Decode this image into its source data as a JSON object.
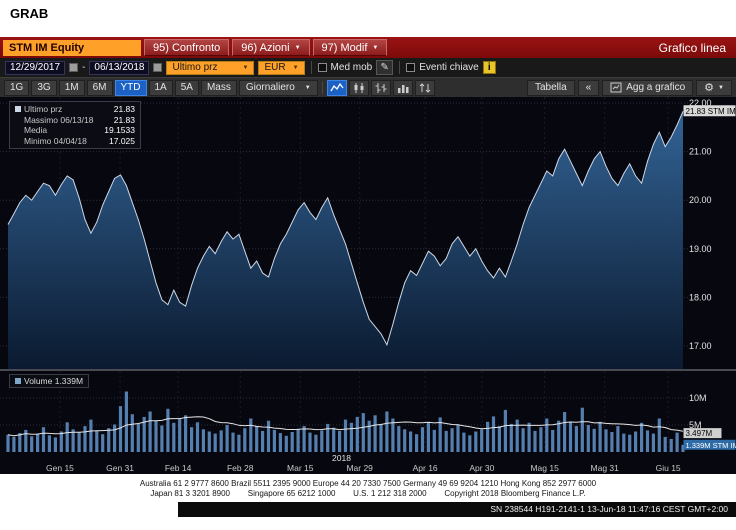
{
  "window": {
    "grab_label": "GRAB"
  },
  "menu_bar": {
    "ticker": "STM IM Equity",
    "items": [
      {
        "label": "95) Confronto"
      },
      {
        "label": "96) Azioni"
      },
      {
        "label": "97) Modif"
      }
    ],
    "title": "Grafico linea"
  },
  "toolbar_settings": {
    "date_from": "12/29/2017",
    "date_separator": "-",
    "date_to": "06/13/2018",
    "price_type": "Ultimo prz",
    "currency": "EUR",
    "med_mob_label": "Med mob",
    "eventi_label": "Eventi chiave",
    "info_label": "i",
    "pencil_glyph": "✎"
  },
  "toolbar_periods": {
    "buttons": [
      "1G",
      "3G",
      "1M",
      "6M",
      "YTD",
      "1A",
      "5A",
      "Mass"
    ],
    "active": "YTD",
    "frequency": "Giornaliero",
    "table_label": "Tabella",
    "collapse_label": "«",
    "add_chart_label": "Agg a grafico",
    "gear_glyph": "⚙"
  },
  "legend": {
    "rows": [
      {
        "label": "Ultimo prz",
        "value": "21.83"
      },
      {
        "label": "Massimo 06/13/18",
        "value": "21.83"
      },
      {
        "label": "Media",
        "value": "19.1533"
      },
      {
        "label": "Minimo 04/04/18",
        "value": "17.025"
      }
    ]
  },
  "price_axis": {
    "labels": [
      {
        "label": "22.00",
        "value": 22
      },
      {
        "label": "21.00",
        "value": 21
      },
      {
        "label": "20.00",
        "value": 20
      },
      {
        "label": "19.00",
        "value": 19
      },
      {
        "label": "18.00",
        "value": 18
      },
      {
        "label": "17.00",
        "value": 17
      }
    ],
    "last_badge": "21.83 STM IM"
  },
  "volume_axis": {
    "labels": [
      {
        "label": "10M",
        "value": 10
      },
      {
        "label": "5M",
        "value": 5
      }
    ],
    "ma_badge": "3.497M",
    "last_badge": "1.339M STM IM",
    "legend": "Volume 1.339M"
  },
  "x_axis": {
    "year": "2018",
    "ticks": [
      {
        "label": "Gen 15",
        "pos": 0.077
      },
      {
        "label": "Gen 31",
        "pos": 0.166
      },
      {
        "label": "Feb 14",
        "pos": 0.252
      },
      {
        "label": "Feb 28",
        "pos": 0.344
      },
      {
        "label": "Mar 15",
        "pos": 0.433
      },
      {
        "label": "Mar 29",
        "pos": 0.521
      },
      {
        "label": "Apr 16",
        "pos": 0.618
      },
      {
        "label": "Apr 30",
        "pos": 0.702
      },
      {
        "label": "Mag 15",
        "pos": 0.795
      },
      {
        "label": "Mag 31",
        "pos": 0.884
      },
      {
        "label": "Giu 15",
        "pos": 0.978
      }
    ]
  },
  "footer": {
    "line1": "Australia 61 2 9777 8600 Brazil 5511 2395 9000 Europe 44 20 7330 7500 Germany 49 69 9204 1210 Hong Kong 852 2977 6000",
    "line2": "Japan 81 3 3201 8900        Singapore 65 6212 1000        U.S. 1 212 318 2000        Copyright 2018 Bloomberg Finance L.P.",
    "session": "SN 238544 H191-2141-1 13-Jun-18 11:47:16 CEST GMT+2:00"
  },
  "colors": {
    "accent_amber": "#ffa028",
    "accent_blue": "#1c62c4",
    "menu_red": "#8a1111",
    "area_fill_top": "#35689c",
    "area_fill_bottom": "#0b1c33",
    "price_line": "#ccd8e8",
    "volume_bar": "#557fae",
    "chart_bg": "#07070f",
    "last_badge_bg": "#d9d9d9",
    "volume_badge_bg": "#2e6ca8"
  },
  "chart_data": {
    "type": "area",
    "title": "STM IM Equity — Grafico linea (YTD, Giornaliero)",
    "x_range": [
      "12/29/2017",
      "06/13/2018"
    ],
    "ylabel": "EUR",
    "legend_position": "top-left",
    "grid": true,
    "y_gridlines_price": [
      17,
      18,
      19,
      20,
      21,
      22
    ],
    "y_gridlines_volume": [
      5,
      10
    ],
    "series": [
      {
        "name": "Ultimo prz (EUR)",
        "type": "area",
        "ylim": [
          16.5,
          22.2
        ],
        "values": [
          19.5,
          19.72,
          19.95,
          20.1,
          20.0,
          20.18,
          20.35,
          20.3,
          20.1,
          20.32,
          20.5,
          20.42,
          20.05,
          19.6,
          19.32,
          19.55,
          19.9,
          20.18,
          20.45,
          20.52,
          20.3,
          19.95,
          19.6,
          19.2,
          18.75,
          18.3,
          17.95,
          17.85,
          18.15,
          17.9,
          17.82,
          18.25,
          18.6,
          18.85,
          19.05,
          18.9,
          19.15,
          19.35,
          19.2,
          19.3,
          18.95,
          18.6,
          18.75,
          18.5,
          18.42,
          18.8,
          19.1,
          19.3,
          19.55,
          19.8,
          19.95,
          19.75,
          19.6,
          19.85,
          20.05,
          19.7,
          19.4,
          19.1,
          18.7,
          18.3,
          17.9,
          17.55,
          17.4,
          17.25,
          17.025,
          17.45,
          17.9,
          18.3,
          18.55,
          18.45,
          18.7,
          18.95,
          18.85,
          18.65,
          18.8,
          19.1,
          19.25,
          19.05,
          18.85,
          19.0,
          18.75,
          18.55,
          18.4,
          18.6,
          18.42,
          18.75,
          19.1,
          19.5,
          19.85,
          20.1,
          20.35,
          20.6,
          20.5,
          20.85,
          21.05,
          20.8,
          20.55,
          20.3,
          20.6,
          20.85,
          21.0,
          20.7,
          20.45,
          20.3,
          20.55,
          20.75,
          20.5,
          20.35,
          20.8,
          21.15,
          21.4,
          21.1,
          21.3,
          21.55,
          21.83
        ]
      },
      {
        "name": "Volume (millions)",
        "type": "bar",
        "ylim": [
          0,
          15
        ],
        "values": [
          3.2,
          2.8,
          3.5,
          4.1,
          2.9,
          3.4,
          4.6,
          3.1,
          2.7,
          3.8,
          5.5,
          4.2,
          3.6,
          4.8,
          6.0,
          3.9,
          3.3,
          4.4,
          5.1,
          8.5,
          11.2,
          7.0,
          5.2,
          6.5,
          7.5,
          5.8,
          4.9,
          8.0,
          5.4,
          6.1,
          6.8,
          4.6,
          5.5,
          4.2,
          3.8,
          3.4,
          4.0,
          5.0,
          3.6,
          3.2,
          4.4,
          6.2,
          4.8,
          3.9,
          5.8,
          4.1,
          3.5,
          3.0,
          3.7,
          4.3,
          4.8,
          3.6,
          3.2,
          4.0,
          5.2,
          4.5,
          3.9,
          6.0,
          5.4,
          6.5,
          7.2,
          5.8,
          6.8,
          5.2,
          7.5,
          6.2,
          4.8,
          4.2,
          3.8,
          3.3,
          4.6,
          5.5,
          4.1,
          6.4,
          3.9,
          4.4,
          5.0,
          3.6,
          3.1,
          3.8,
          4.2,
          5.6,
          6.6,
          4.8,
          7.8,
          5.2,
          6.0,
          4.4,
          5.4,
          3.9,
          4.6,
          6.2,
          4.1,
          5.8,
          7.4,
          5.5,
          4.8,
          8.2,
          5.0,
          4.3,
          5.6,
          4.2,
          3.7,
          4.8,
          3.4,
          3.2,
          3.8,
          5.4,
          4.0,
          3.4,
          6.2,
          2.8,
          2.4,
          3.6,
          1.339
        ]
      }
    ],
    "stats": {
      "last": 21.83,
      "high": 21.83,
      "high_date": "06/13/18",
      "mean": 19.1533,
      "low": 17.025,
      "low_date": "04/04/18",
      "last_volume": 1.339,
      "volume_ma": 3.497
    }
  }
}
